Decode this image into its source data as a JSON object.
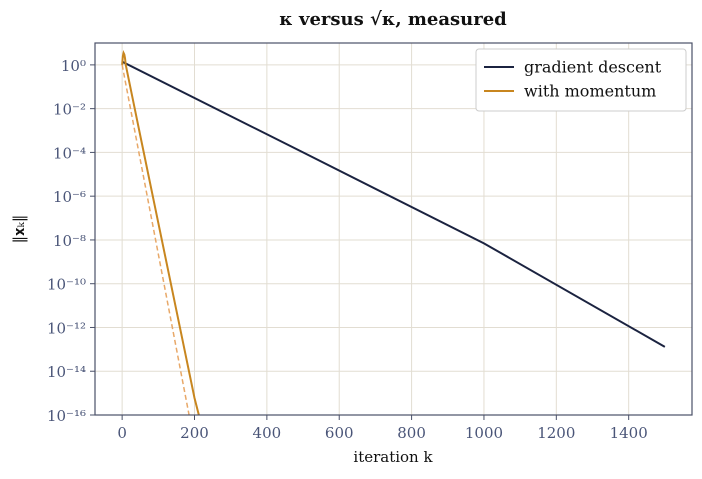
{
  "chart_data": {
    "type": "line",
    "title": "κ versus √κ, measured",
    "x_label": "iteration k",
    "y_label": "‖𝐱ₖ‖",
    "xlim": [
      -75,
      1575
    ],
    "ylim": [
      1e-16,
      10
    ],
    "log_y": true,
    "grid": true,
    "legend": "upper right",
    "xticks": [
      0,
      200,
      400,
      600,
      800,
      1000,
      1200,
      1400
    ],
    "yticks": [
      {
        "value": 1,
        "label": "10⁰"
      },
      {
        "value": 0.01,
        "label": "10⁻²"
      },
      {
        "value": 0.0001,
        "label": "10⁻⁴"
      },
      {
        "value": 1e-06,
        "label": "10⁻⁶"
      },
      {
        "value": 1e-08,
        "label": "10⁻⁸"
      },
      {
        "value": 1e-10,
        "label": "10⁻¹⁰"
      },
      {
        "value": 1e-12,
        "label": "10⁻¹²"
      },
      {
        "value": 1e-14,
        "label": "10⁻¹⁴"
      },
      {
        "value": 1e-16,
        "label": "10⁻¹⁶"
      }
    ],
    "series": [
      {
        "name": "gradient descent",
        "color": "#1b2340",
        "x": [
          0,
          500,
          1000,
          1500
        ],
        "values": [
          1.4,
          0.0001,
          7e-09,
          1.3e-13
        ]
      },
      {
        "name": "with momentum",
        "color": "#c8861f",
        "x": [
          0,
          2,
          4,
          6,
          8,
          10,
          50,
          100,
          150,
          200,
          212
        ],
        "values": [
          1,
          2.5,
          3.5,
          3,
          2,
          1,
          0.0006,
          6e-08,
          6e-12,
          6e-16,
          1e-16
        ]
      },
      {
        "color": "#e8a868",
        "dashed": true,
        "x": [
          0,
          185
        ],
        "values": [
          1,
          1e-16
        ]
      }
    ]
  }
}
